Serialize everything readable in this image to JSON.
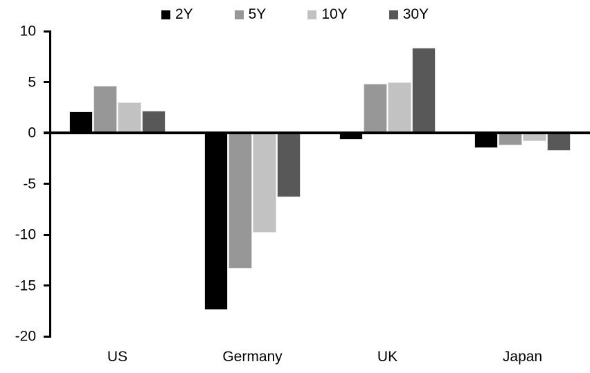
{
  "page": {
    "background": "#ffffff",
    "text_color": "#000000"
  },
  "chart_data": {
    "type": "bar",
    "title": "",
    "xlabel": "",
    "ylabel": "",
    "categories": [
      "US",
      "Germany",
      "UK",
      "Japan"
    ],
    "series": [
      {
        "name": "2Y",
        "color": "#000000",
        "values": [
          2.1,
          -17.4,
          -0.7,
          -1.5
        ]
      },
      {
        "name": "5Y",
        "color": "#979797",
        "values": [
          4.6,
          -13.3,
          4.8,
          -1.2
        ]
      },
      {
        "name": "10Y",
        "color": "#c2c2c2",
        "values": [
          3.0,
          -9.8,
          5.0,
          -0.8
        ]
      },
      {
        "name": "30Y",
        "color": "#585858",
        "values": [
          2.2,
          -6.3,
          8.4,
          -1.8
        ]
      }
    ],
    "ylim": [
      -20,
      10
    ],
    "yticks": [
      10,
      5,
      0,
      -5,
      -10,
      -15,
      -20
    ],
    "grid": false,
    "legend_position": "top-center",
    "bar_outline_color": "#dedede",
    "zero_baseline": true
  }
}
